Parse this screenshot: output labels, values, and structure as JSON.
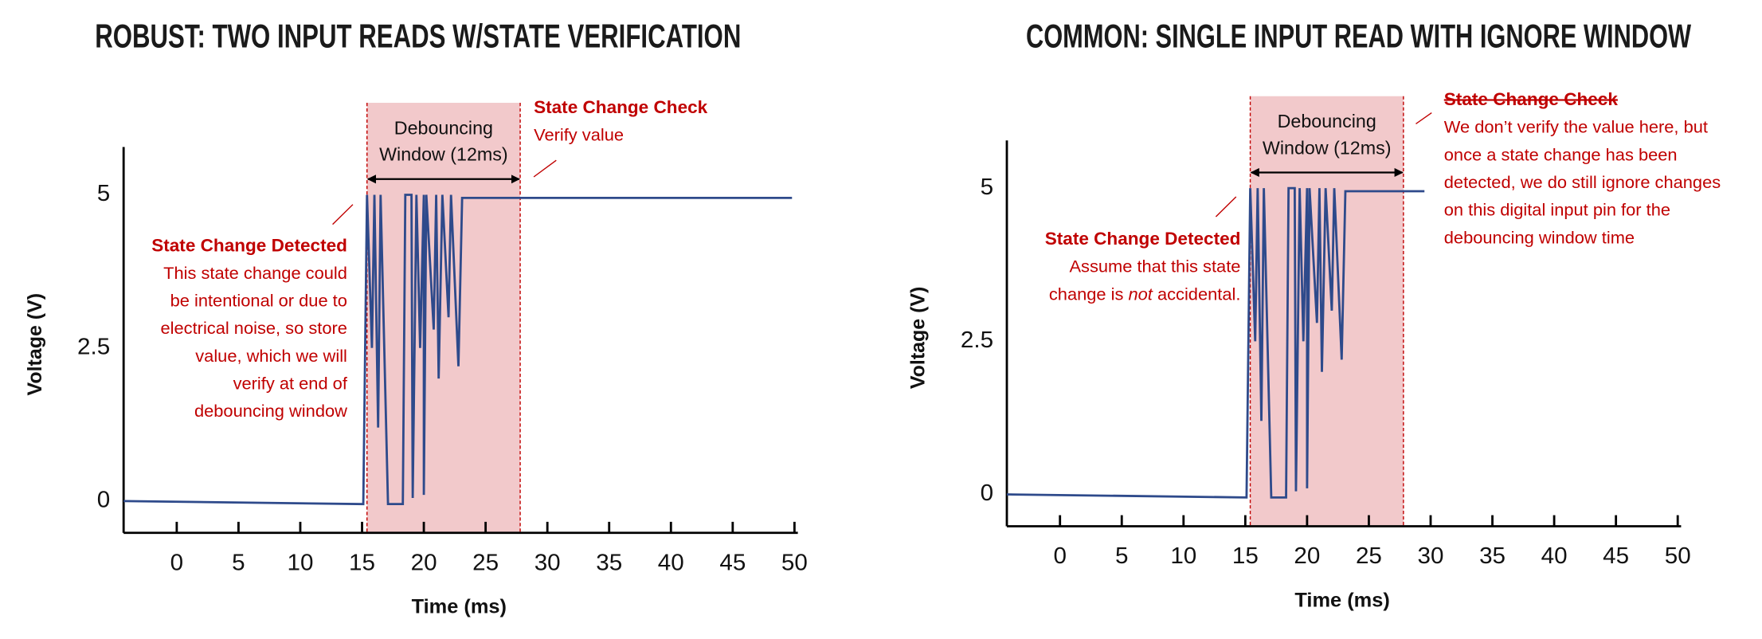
{
  "chart_data": [
    {
      "type": "line",
      "title": "ROBUST: TWO INPUT READS W/STATE VERIFICATION",
      "x_label": "Time (ms)",
      "y_label": "Voltage (V)",
      "xlim": [
        -4.3,
        50
      ],
      "ylim": [
        -0.52,
        5.78
      ],
      "xticks": [
        0,
        5,
        10,
        15,
        20,
        25,
        30,
        35,
        40,
        45,
        50
      ],
      "yticks": [
        0,
        2.5,
        5
      ],
      "series": [
        {
          "color": "#2e4a8b",
          "x": [
            -4.3,
            15.1,
            15.4,
            15.8,
            16.0,
            16.3,
            16.5,
            17.1,
            18.3,
            18.5,
            19.0,
            19.1,
            19.4,
            19.7,
            20.0,
            20.0,
            20.2,
            20.8,
            21.0,
            21.2,
            21.5,
            22.0,
            22.2,
            22.8,
            23.1,
            49.8
          ],
          "values": [
            0,
            -0.05,
            5,
            2.5,
            5,
            1.2,
            5,
            -0.05,
            -0.05,
            5,
            5,
            0.05,
            5,
            2.5,
            5,
            0.1,
            5,
            2.8,
            5,
            2.0,
            5,
            3.0,
            5,
            2.2,
            4.95,
            4.95
          ]
        }
      ],
      "shaded_region": {
        "x": [
          15.4,
          27.8
        ],
        "color": "#f2c9cb",
        "label": [
          "Debouncing",
          "Window (12ms)"
        ]
      },
      "annotations": [
        {
          "title": "State Change Check",
          "lines": [
            "Verify value"
          ]
        },
        {
          "title": "State Change Detected",
          "lines": [
            "This state change could",
            "be intentional or due to",
            "electrical noise, so store",
            "value, which we will",
            "verify at end of",
            "debouncing window"
          ]
        }
      ]
    },
    {
      "type": "line",
      "title": "COMMON: SINGLE INPUT READ WITH IGNORE WINDOW",
      "x_label": "Time (ms)",
      "y_label": "Voltage (V)",
      "xlim": [
        -4.3,
        50
      ],
      "ylim": [
        -0.52,
        5.78
      ],
      "xticks": [
        0,
        5,
        10,
        15,
        20,
        25,
        30,
        35,
        40,
        45,
        50
      ],
      "yticks": [
        0,
        2.5,
        5
      ],
      "series": [
        {
          "color": "#2e4a8b",
          "x": [
            -4.3,
            15.1,
            15.4,
            15.8,
            16.0,
            16.3,
            16.5,
            17.1,
            18.3,
            18.5,
            19.0,
            19.1,
            19.4,
            19.7,
            20.0,
            20.0,
            20.2,
            20.8,
            21.0,
            21.2,
            21.5,
            22.0,
            22.2,
            22.8,
            23.1,
            29.5
          ],
          "values": [
            0,
            -0.05,
            5,
            2.5,
            5,
            1.2,
            5,
            -0.05,
            -0.05,
            5,
            5,
            0.05,
            5,
            2.5,
            5,
            0.1,
            5,
            2.8,
            5,
            2.0,
            5,
            3.0,
            5,
            2.2,
            4.95,
            4.95
          ]
        }
      ],
      "shaded_region": {
        "x": [
          15.4,
          27.8
        ],
        "color": "#f2c9cb",
        "label": [
          "Debouncing",
          "Window (12ms)"
        ]
      },
      "annotations": [
        {
          "title": "State Change Check",
          "title_struck": true,
          "lines": [
            "We don’t verify the value here, but",
            "once a state change has been",
            "detected, we do still ignore changes",
            "on this digital input pin for the",
            "debouncing window time"
          ]
        },
        {
          "title": "State Change Detected",
          "lines": [
            "Assume that this state",
            [
              "change is ",
              "not",
              " accidental."
            ]
          ]
        }
      ]
    }
  ]
}
